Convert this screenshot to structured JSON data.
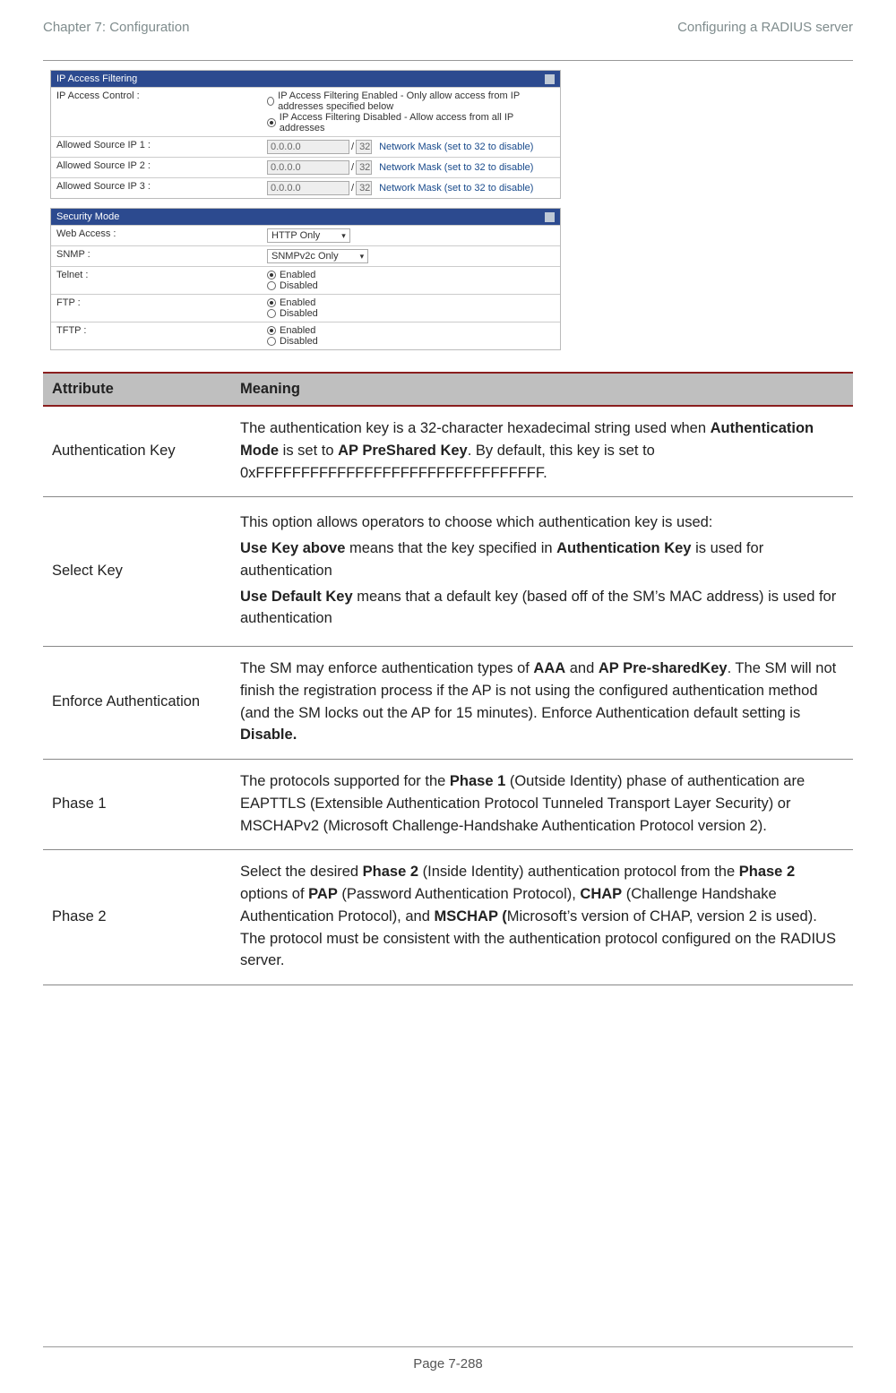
{
  "header": {
    "left": "Chapter 7:  Configuration",
    "right": "Configuring a RADIUS server"
  },
  "ipfilter": {
    "title": "IP Access Filtering",
    "label": "IP Access Control :",
    "opt_enabled": "IP Access Filtering Enabled - Only allow access from IP addresses specified below",
    "opt_disabled": "IP Access Filtering Disabled - Allow access from all IP addresses",
    "rows": [
      {
        "label": "Allowed Source IP 1 :",
        "ip": "0.0.0.0",
        "mask": "32",
        "note": "Network Mask (set to 32 to disable)"
      },
      {
        "label": "Allowed Source IP 2 :",
        "ip": "0.0.0.0",
        "mask": "32",
        "note": "Network Mask (set to 32 to disable)"
      },
      {
        "label": "Allowed Source IP 3 :",
        "ip": "0.0.0.0",
        "mask": "32",
        "note": "Network Mask (set to 32 to disable)"
      }
    ]
  },
  "security": {
    "title": "Security Mode",
    "web_label": "Web Access :",
    "web_value": "HTTP Only",
    "snmp_label": "SNMP :",
    "snmp_value": "SNMPv2c Only",
    "telnet_label": "Telnet :",
    "ftp_label": "FTP :",
    "tftp_label": "TFTP :",
    "enabled": "Enabled",
    "disabled": "Disabled"
  },
  "table": {
    "h1": "Attribute",
    "h2": "Meaning",
    "rows": {
      "r1": {
        "attr": "Authentication Key",
        "t1": "The authentication key is a 32-character hexadecimal string used when ",
        "b1": "Authentication Mode",
        "t2": " is set to ",
        "b2": "AP PreShared Key",
        "t3": ". By default, this key is set to 0xFFFFFFFFFFFFFFFFFFFFFFFFFFFFFFFF."
      },
      "r2": {
        "attr": "Select Key",
        "p1": "This option allows operators to choose which authentication key is used:",
        "b1": "Use Key above",
        "p2a": " means that the key specified in ",
        "b2": "Authentication Key",
        "p2b": " is used for authentication",
        "b3": "Use Default Key",
        "p3": " means that a default key (based off of the SM’s MAC address) is used for authentication"
      },
      "r3": {
        "attr": "Enforce Authentication",
        "t1": "The SM may enforce authentication types of ",
        "b1": "AAA",
        "t2": " and ",
        "b2": "AP Pre-sharedKey",
        "t3": ". The SM will not finish the registration process if the AP is not using the configured authentication method (and the SM locks out the AP for 15 minutes). Enforce Authentication default setting is ",
        "b3": "Disable."
      },
      "r4": {
        "attr": "Phase 1",
        "t1": "The protocols supported for the ",
        "b1": "Phase 1",
        "t2": " (Outside Identity) phase of authentication are EAPTTLS (Extensible Authentication Protocol Tunneled Transport Layer Security) or MSCHAPv2 (Microsoft Challenge-Handshake Authentication Protocol version 2)."
      },
      "r5": {
        "attr": "Phase 2",
        "t1": "Select the desired ",
        "b1": "Phase 2",
        "t2": " (Inside Identity) authentication protocol from the ",
        "b2": "Phase 2",
        "t3": " options of ",
        "b3": "PAP",
        "t4": " (Password Authentication Protocol), ",
        "b4": "CHAP",
        "t5": " (Challenge Handshake Authentication Protocol), and ",
        "b5": "MSCHAP (",
        "t6": "Microsoft’s version of CHAP, version 2 is used). The protocol must be consistent with the authentication protocol configured on the RADIUS server."
      }
    }
  },
  "footer": "Page 7-288"
}
